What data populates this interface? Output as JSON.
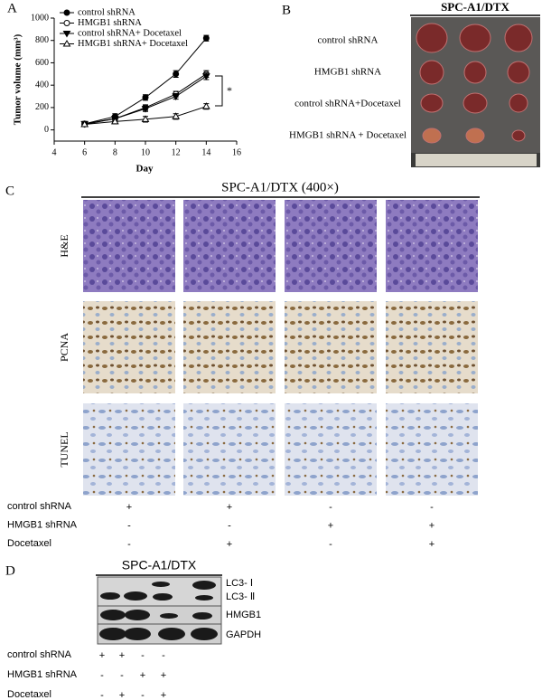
{
  "panel_labels": [
    "A",
    "B",
    "C",
    "D"
  ],
  "chart_data": {
    "type": "line",
    "ylabel": "Tumor volume (mm³)",
    "xlabel": "Day",
    "x": [
      6,
      8,
      10,
      12,
      14
    ],
    "series": [
      {
        "name": "control shRNA",
        "color": "#000000",
        "marker": "circle",
        "filled": true,
        "values": [
          55,
          120,
          290,
          500,
          820
        ],
        "errors": [
          20,
          25,
          25,
          30,
          25
        ]
      },
      {
        "name": "HMGB1 shRNA",
        "color": "#000000",
        "marker": "circle",
        "filled": false,
        "values": [
          50,
          100,
          200,
          320,
          500
        ],
        "errors": [
          20,
          20,
          25,
          25,
          30
        ]
      },
      {
        "name": "control shRNA+ Docetaxel",
        "color": "#000000",
        "marker": "triangle-down",
        "filled": true,
        "values": [
          55,
          100,
          190,
          300,
          480
        ],
        "errors": [
          20,
          20,
          25,
          25,
          30
        ]
      },
      {
        "name": "HMGB1 shRNA+ Docetaxel",
        "color": "#000000",
        "marker": "triangle-up",
        "filled": false,
        "values": [
          50,
          75,
          95,
          120,
          210
        ],
        "errors": [
          20,
          20,
          25,
          25,
          25
        ]
      }
    ],
    "xlim": [
      4,
      16
    ],
    "xticks": [
      4,
      6,
      8,
      10,
      12,
      14,
      16
    ],
    "ylim": [
      -100,
      1000
    ],
    "yticks": [
      0,
      200,
      400,
      600,
      800,
      1000
    ],
    "annotation": "*"
  },
  "panel_b": {
    "title": "SPC-A1/DTX",
    "rows": [
      "control shRNA",
      "HMGB1 shRNA",
      "control shRNA+Docetaxel",
      "HMGB1 shRNA + Docetaxel"
    ]
  },
  "panel_c": {
    "title": "SPC-A1/DTX (400×)",
    "rows": [
      "H&E",
      "PCNA",
      "TUNEL"
    ],
    "conditions": [
      {
        "label": "control shRNA",
        "signs": [
          "+",
          "+",
          "-",
          "-"
        ]
      },
      {
        "label": "HMGB1 shRNA",
        "signs": [
          "-",
          "-",
          "+",
          "+"
        ]
      },
      {
        "label": "Docetaxel",
        "signs": [
          "-",
          "+",
          "-",
          "+"
        ]
      }
    ]
  },
  "panel_d": {
    "title": "SPC-A1/DTX",
    "bands": [
      "LC3- Ⅰ",
      "LC3- Ⅱ",
      "HMGB1",
      "GAPDH"
    ],
    "conditions": [
      {
        "label": "control shRNA",
        "signs": [
          "+",
          "+",
          "-",
          "-"
        ]
      },
      {
        "label": "HMGB1 shRNA",
        "signs": [
          "-",
          "-",
          "+",
          "+"
        ]
      },
      {
        "label": "Docetaxel",
        "signs": [
          "-",
          "+",
          "-",
          "+"
        ]
      }
    ]
  }
}
